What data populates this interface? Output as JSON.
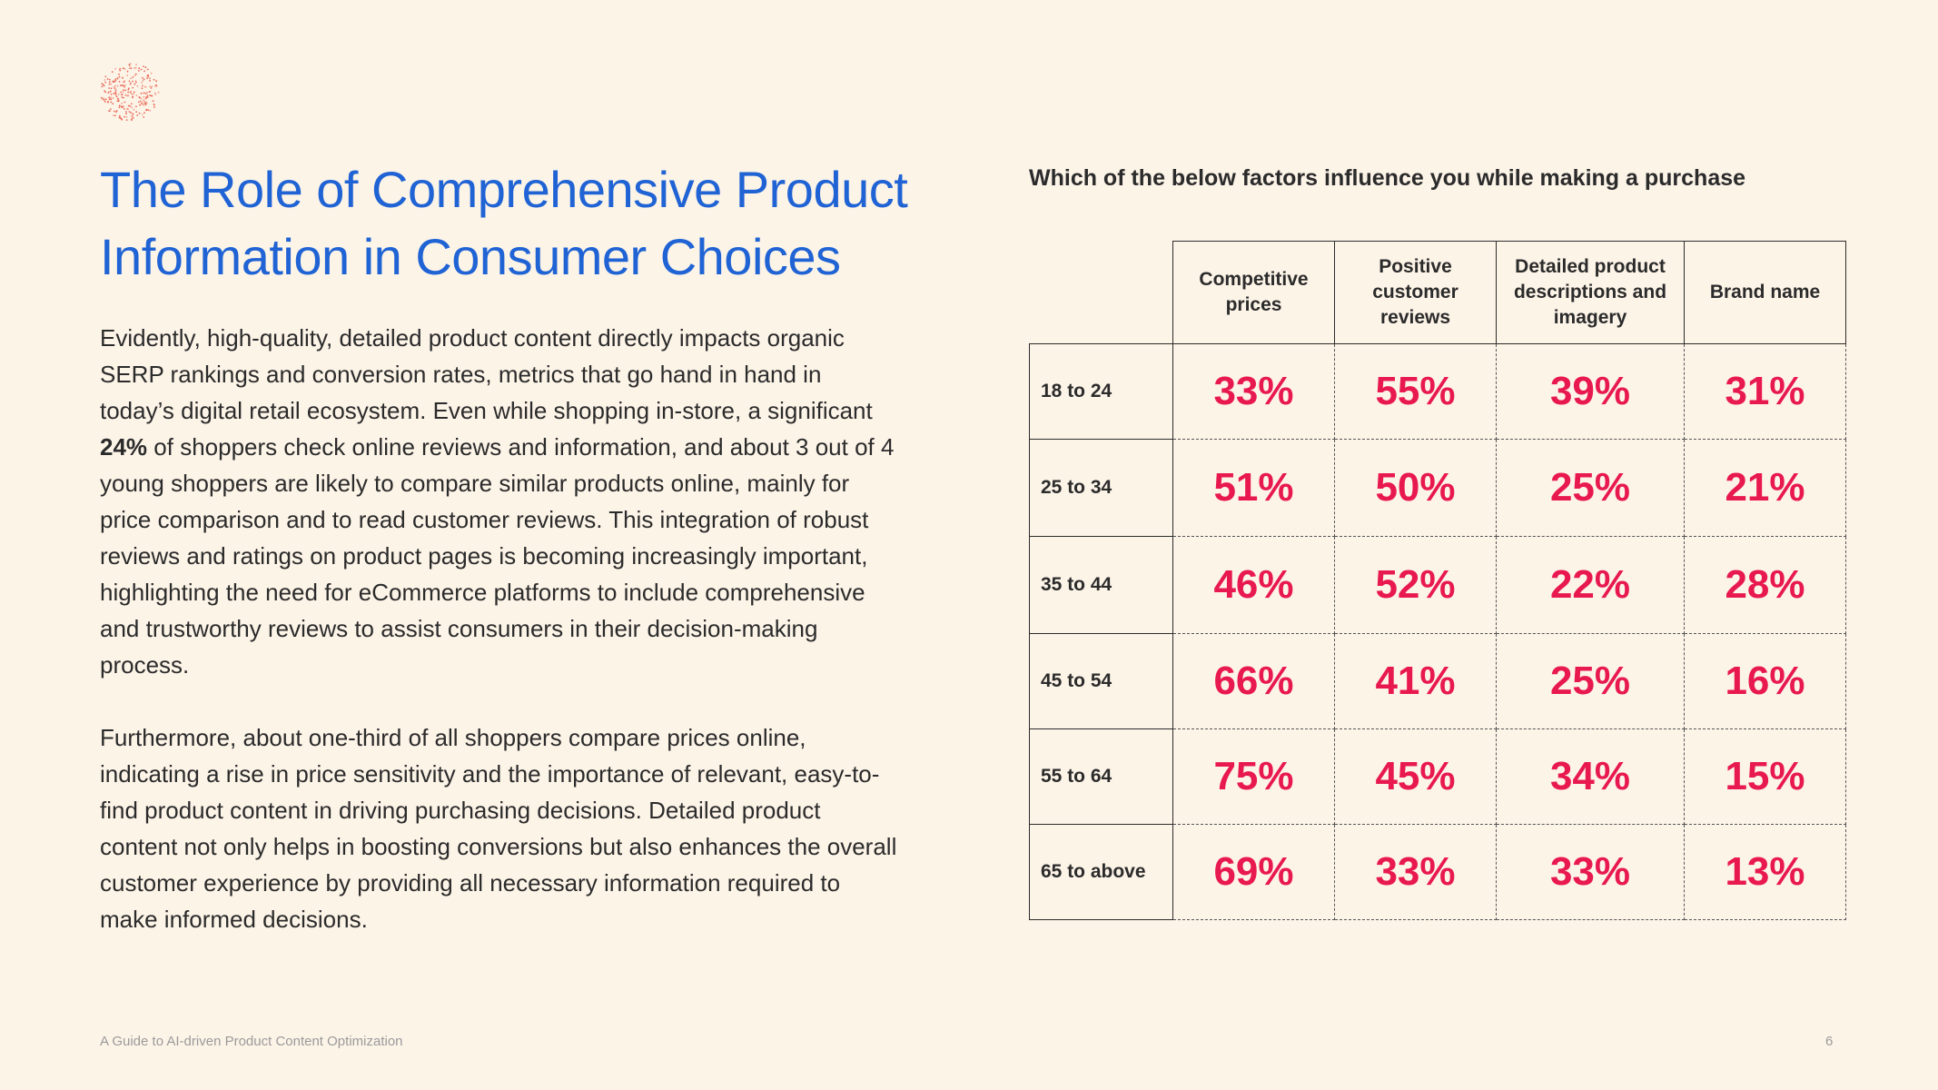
{
  "header": {
    "title_line1": "The Role of Comprehensive Product",
    "title_line2": "Information in Consumer Choices"
  },
  "body": {
    "p1_before": "Evidently, high-quality, detailed product content directly impacts organic SERP rankings and conversion rates, metrics that go hand in hand in today’s digital retail ecosystem. Even while shopping in-store, a significant",
    "p1_bold": "24%",
    "p1_after": "of shoppers check online reviews and information, and about 3 out of 4 young shoppers are likely to compare similar products online, mainly for price comparison and to read customer reviews. This integration of robust reviews and ratings on product pages is becoming increasingly important, highlighting the need for eCommerce platforms to include comprehensive and trustworthy reviews to assist consumers in their decision-making process.",
    "p2": "Furthermore, about one-third of all shoppers compare prices online, indicating a rise in price sensitivity and the importance of relevant, easy-to-find product content in driving purchasing decisions. Detailed product content not only helps in boosting conversions but also enhances the overall customer experience by providing all necessary information required to make informed decisions."
  },
  "chart_data": {
    "type": "table",
    "title": "Which of the below factors influence you while making a purchase",
    "columns": [
      "Competitive prices",
      "Positive customer reviews",
      "Detailed product descriptions and imagery",
      "Brand name"
    ],
    "rows": [
      {
        "label": "18 to 24",
        "values": [
          "33%",
          "55%",
          "39%",
          "31%"
        ]
      },
      {
        "label": "25 to 34",
        "values": [
          "51%",
          "50%",
          "25%",
          "21%"
        ]
      },
      {
        "label": "35 to 44",
        "values": [
          "46%",
          "52%",
          "22%",
          "28%"
        ]
      },
      {
        "label": "45 to 54",
        "values": [
          "66%",
          "41%",
          "25%",
          "16%"
        ]
      },
      {
        "label": "55 to 64",
        "values": [
          "75%",
          "45%",
          "34%",
          "15%"
        ]
      },
      {
        "label": "65 to above",
        "values": [
          "69%",
          "33%",
          "33%",
          "13%"
        ]
      }
    ]
  },
  "footer": {
    "text": "A Guide to AI-driven Product Content Optimization",
    "page": "6"
  },
  "colors": {
    "accent_blue": "#1f63d4",
    "accent_pink": "#e8194f",
    "background": "#fdf4e8"
  }
}
